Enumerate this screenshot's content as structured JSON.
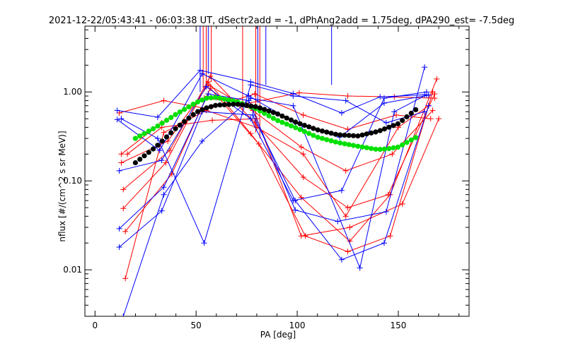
{
  "chart_data": {
    "type": "line",
    "title": "2021-12-22/05:43:41 - 06:03:38 UT, dSectr2add = -1, dPhAng2add = 1.75deg, dPA290_est=  -7.5deg",
    "xlabel": "PA [deg]",
    "ylabel": "nflux [#/(cm^2 s sr MeV)]",
    "xlim": [
      -5,
      185
    ],
    "ylim": [
      0.003,
      5.5
    ],
    "y_scale": "log",
    "grid": false,
    "legend": "none",
    "x_ticks": [
      0,
      50,
      100,
      150
    ],
    "x_tick_labels": [
      "0",
      "50",
      "100",
      "150"
    ],
    "y_ticks": [
      0.01,
      0.1,
      1.0
    ],
    "y_tick_labels": [
      "0.01",
      "0.10",
      "1.00"
    ],
    "colors": {
      "red": "#ff0000",
      "blue": "#0000ff",
      "green": "#00e000",
      "black": "#000000"
    },
    "series": [
      {
        "color": "red",
        "x": [
          12,
          34,
          55,
          79,
          103,
          125,
          149,
          166
        ],
        "y": [
          0.58,
          0.8,
          0.65,
          0.95,
          0.55,
          0.38,
          0.55,
          0.5
        ]
      },
      {
        "color": "red",
        "x": [
          13,
          33,
          54,
          76,
          101,
          125,
          148,
          168
        ],
        "y": [
          0.2,
          0.45,
          0.85,
          0.75,
          0.98,
          0.9,
          0.88,
          0.85
        ]
      },
      {
        "color": "red",
        "x": [
          13,
          36,
          56,
          78,
          102,
          124,
          147,
          167
        ],
        "y": [
          0.16,
          0.28,
          1.2,
          0.62,
          0.24,
          0.13,
          0.2,
          0.62
        ]
      },
      {
        "color": "red",
        "x": [
          14,
          37,
          57,
          79,
          103,
          125,
          145,
          168
        ],
        "y": [
          0.08,
          0.22,
          1.5,
          0.45,
          0.11,
          0.05,
          0.07,
          0.95
        ]
      },
      {
        "color": "red",
        "x": [
          14,
          35,
          56,
          77,
          102,
          126,
          146,
          169
        ],
        "y": [
          0.049,
          0.16,
          1.3,
          0.34,
          0.065,
          0.021,
          0.07,
          1.4
        ]
      },
      {
        "color": "red",
        "x": [
          15,
          38,
          57,
          81,
          104,
          125,
          146,
          167
        ],
        "y": [
          0.027,
          0.12,
          1.1,
          0.26,
          0.024,
          0.016,
          0.024,
          1.0
        ]
      },
      {
        "color": "red",
        "x": [
          15,
          34,
          55,
          80,
          103,
          124,
          150,
          165
        ],
        "y": [
          0.008,
          0.35,
          0.62,
          0.4,
          0.2,
          0.04,
          0.4,
          0.7
        ]
      },
      {
        "color": "red",
        "x": [
          16,
          33,
          58,
          80,
          102,
          126,
          152,
          170
        ],
        "y": [
          0.2,
          0.4,
          0.48,
          0.5,
          0.024,
          0.03,
          0.055,
          0.5
        ]
      },
      {
        "color": "blue",
        "x": [
          11,
          31,
          52,
          77,
          98,
          122,
          141,
          163
        ],
        "y": [
          0.62,
          0.52,
          1.75,
          1.3,
          0.96,
          0.58,
          0.88,
          0.93
        ]
      },
      {
        "color": "blue",
        "x": [
          11,
          32,
          53,
          76,
          99,
          121,
          143,
          165
        ],
        "y": [
          0.49,
          0.22,
          1.6,
          0.9,
          0.45,
          0.31,
          0.75,
          0.92
        ]
      },
      {
        "color": "blue",
        "x": [
          12,
          33,
          55,
          77,
          98,
          122,
          143,
          164
        ],
        "y": [
          0.13,
          0.17,
          1.15,
          0.5,
          0.06,
          0.078,
          0.85,
          1.0
        ]
      },
      {
        "color": "blue",
        "x": [
          12,
          34,
          56,
          76,
          99,
          120,
          144,
          163
        ],
        "y": [
          0.029,
          0.085,
          0.95,
          0.8,
          0.047,
          0.035,
          0.045,
          1.9
        ]
      },
      {
        "color": "blue",
        "x": [
          12,
          33,
          53,
          78,
          99,
          122,
          143,
          165
        ],
        "y": [
          0.018,
          0.046,
          0.6,
          0.55,
          0.06,
          0.013,
          0.02,
          0.7
        ]
      },
      {
        "color": "blue",
        "x": [
          14,
          34,
          53,
          77,
          98,
          131,
          148,
          164
        ],
        "y": [
          0.003,
          0.07,
          0.28,
          0.85,
          0.7,
          0.0105,
          0.6,
          0.93
        ]
      },
      {
        "color": "blue",
        "x": [
          13,
          31,
          54,
          77,
          98,
          124,
          144,
          163
        ],
        "y": [
          0.5,
          0.3,
          0.02,
          1.2,
          0.9,
          0.8,
          0.45,
          0.6
        ]
      }
    ],
    "vertical_spikes": [
      {
        "color": "blue",
        "x": 52,
        "y_from": 1.0
      },
      {
        "color": "red",
        "x": 53.5,
        "y_from": 1.1
      },
      {
        "color": "red",
        "x": 55,
        "y_from": 1.2
      },
      {
        "color": "blue",
        "x": 56,
        "y_from": 1.6
      },
      {
        "color": "red",
        "x": 57.5,
        "y_from": 1.3
      },
      {
        "color": "red",
        "x": 73,
        "y_from": 0.55
      },
      {
        "color": "red",
        "x": 79.5,
        "y_from": 0.35
      },
      {
        "color": "blue",
        "x": 80.5,
        "y_from": 0.75
      },
      {
        "color": "red",
        "x": 81.5,
        "y_from": 0.3
      },
      {
        "color": "blue",
        "x": 84.5,
        "y_from": 1.2
      },
      {
        "color": "blue",
        "x": 117,
        "y_from": 1.2
      }
    ],
    "fit_green": {
      "x": [
        20,
        30,
        40,
        50,
        55,
        60,
        70,
        80,
        90,
        100,
        110,
        120,
        130,
        140,
        145,
        150,
        160
      ],
      "y": [
        0.3,
        0.4,
        0.56,
        0.76,
        0.85,
        0.87,
        0.78,
        0.64,
        0.48,
        0.39,
        0.31,
        0.27,
        0.245,
        0.225,
        0.23,
        0.24,
        0.32
      ]
    },
    "fit_black": {
      "x": [
        20,
        30,
        40,
        50,
        55,
        60,
        70,
        80,
        90,
        100,
        110,
        120,
        130,
        140,
        150,
        160
      ],
      "y": [
        0.16,
        0.24,
        0.39,
        0.59,
        0.66,
        0.71,
        0.73,
        0.68,
        0.57,
        0.45,
        0.375,
        0.33,
        0.32,
        0.36,
        0.44,
        0.67
      ]
    }
  }
}
